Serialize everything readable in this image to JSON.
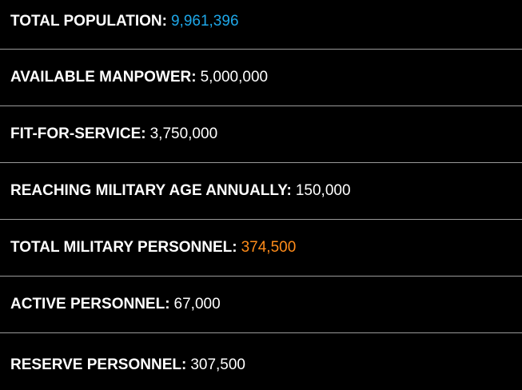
{
  "colors": {
    "background": "#000000",
    "text": "#ffffff",
    "divider": "#9a9a9a",
    "population_highlight": "#1ea7e8",
    "personnel_highlight": "#ff8c1a"
  },
  "stats": [
    {
      "label": "TOTAL POPULATION:",
      "value": "9,961,396",
      "color": "#1ea7e8"
    },
    {
      "label": "AVAILABLE MANPOWER:",
      "value": "5,000,000",
      "color": "#ffffff"
    },
    {
      "label": "FIT-FOR-SERVICE:",
      "value": "3,750,000",
      "color": "#ffffff"
    },
    {
      "label": "REACHING MILITARY AGE ANNUALLY:",
      "value": "150,000",
      "color": "#ffffff"
    },
    {
      "label": "TOTAL MILITARY PERSONNEL:",
      "value": "374,500",
      "color": "#ff8c1a"
    },
    {
      "label": "ACTIVE PERSONNEL:",
      "value": "67,000",
      "color": "#ffffff"
    },
    {
      "label": "RESERVE PERSONNEL:",
      "value": "307,500",
      "color": "#ffffff"
    }
  ]
}
